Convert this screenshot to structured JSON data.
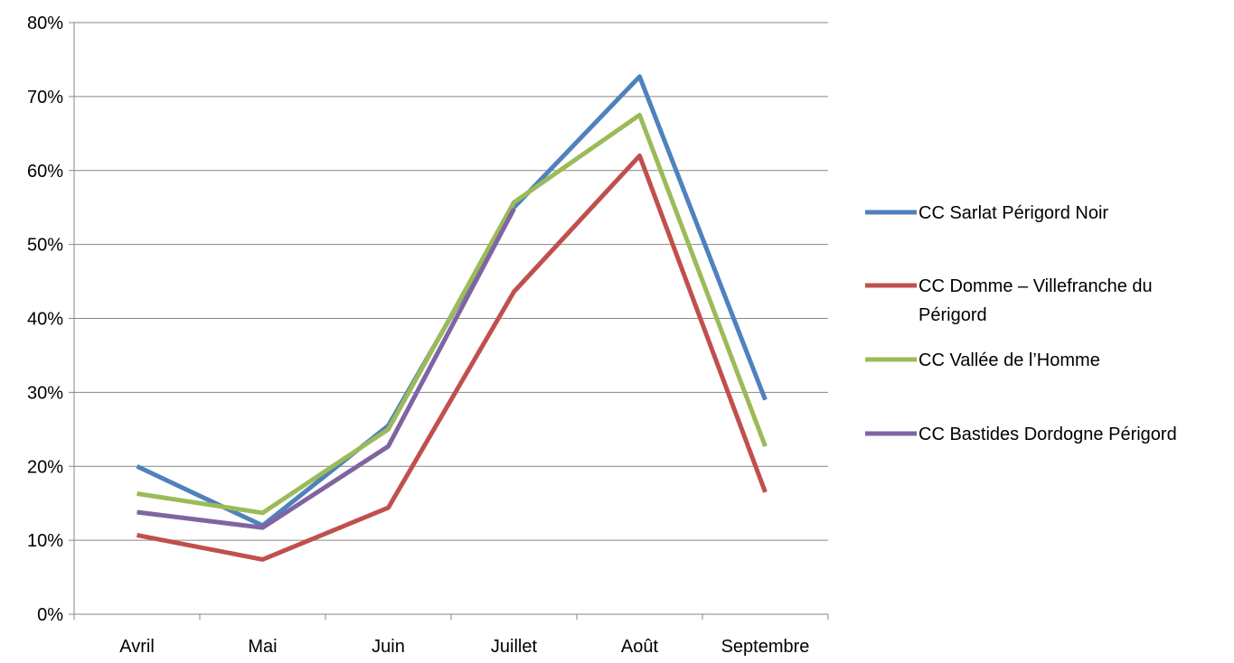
{
  "chart_data": {
    "type": "line",
    "title": "",
    "xlabel": "",
    "ylabel": "",
    "categories": [
      "Avril",
      "Mai",
      "Juin",
      "Juillet",
      "Août",
      "Septembre"
    ],
    "ylim": [
      0,
      0.8
    ],
    "y_ticks": [
      0,
      0.1,
      0.2,
      0.3,
      0.4,
      0.5,
      0.6,
      0.7,
      0.8
    ],
    "y_tick_labels": [
      "0%",
      "10%",
      "20%",
      "30%",
      "40%",
      "50%",
      "60%",
      "70%",
      "80%"
    ],
    "grid": "horizontal",
    "legend_position": "right",
    "series": [
      {
        "name": "CC Sarlat Périgord Noir",
        "legend_lines": [
          "CC Sarlat Périgord Noir"
        ],
        "color": "#4f81bd",
        "values": [
          0.2,
          0.12,
          0.255,
          0.55,
          0.727,
          0.29
        ]
      },
      {
        "name": "CC Domme – Villefranche du Périgord",
        "legend_lines": [
          "CC Domme – Villefranche du",
          "Périgord"
        ],
        "color": "#c0504d",
        "values": [
          0.107,
          0.074,
          0.144,
          0.436,
          0.62,
          0.165
        ]
      },
      {
        "name": "CC Vallée de l’Homme",
        "legend_lines": [
          "CC Vallée de l’Homme"
        ],
        "color": "#9bbb59",
        "values": [
          0.163,
          0.137,
          0.25,
          0.557,
          0.675,
          0.227
        ]
      },
      {
        "name": "CC Bastides Dordogne Périgord",
        "legend_lines": [
          "CC Bastides Dordogne Périgord"
        ],
        "color": "#8064a2",
        "values": [
          0.138,
          0.117,
          0.227,
          0.548,
          null,
          null
        ]
      }
    ]
  }
}
